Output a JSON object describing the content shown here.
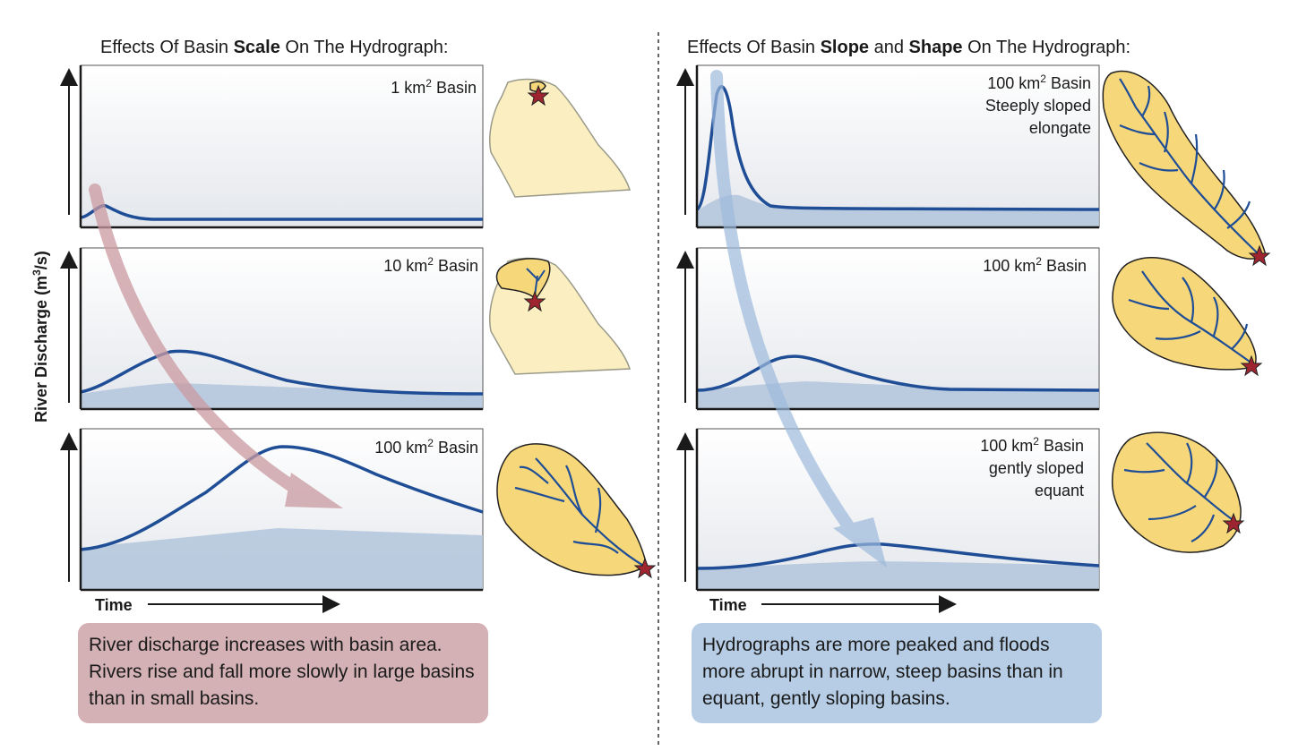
{
  "left_panel": {
    "title_parts": [
      "Effects Of Basin ",
      "Scale",
      " On The Hydrograph:"
    ],
    "charts": [
      {
        "label_lines": [
          [
            "1 km",
            "2",
            " Basin"
          ]
        ]
      },
      {
        "label_lines": [
          [
            "10 km",
            "2",
            " Basin"
          ]
        ]
      },
      {
        "label_lines": [
          [
            "100 km",
            "2",
            " Basin"
          ]
        ]
      }
    ],
    "x_label": "Time",
    "note": "River discharge increases with basin area. Rivers rise and fall more slowly in large basins than in small basins."
  },
  "right_panel": {
    "title_parts": [
      "Effects Of Basin ",
      "Slope",
      " and ",
      "Shape",
      " On The Hydrograph:"
    ],
    "charts": [
      {
        "label_lines": [
          [
            "100 km",
            "2",
            " Basin"
          ],
          [
            "Steeply sloped"
          ],
          [
            "elongate"
          ]
        ]
      },
      {
        "label_lines": [
          [
            "100 km",
            "2",
            " Basin"
          ]
        ]
      },
      {
        "label_lines": [
          [
            "100 km",
            "2",
            " Basin"
          ],
          [
            "gently sloped"
          ],
          [
            "equant"
          ]
        ]
      }
    ],
    "x_label": "Time",
    "note": "Hydrographs are more peaked and floods more abrupt in narrow, steep basins than in equant, gently sloping basins."
  },
  "y_axis_label": [
    "River Discharge (m",
    "3",
    "/s)"
  ],
  "colors": {
    "hydrograph_line": "#1f4e96",
    "baseflow_fill": "#b3c6dc",
    "basin_fill_small": "#fbeec0",
    "basin_fill_drainage": "#f6d77a",
    "outlet_star": "#9e2530",
    "left_arrow": "#c99aa0",
    "right_arrow": "#9db9dc",
    "left_note_bg": "#d3b1b5",
    "right_note_bg": "#b6cde5"
  },
  "icons": [
    "outlet-star-icon",
    "trend-arrow-icon"
  ]
}
